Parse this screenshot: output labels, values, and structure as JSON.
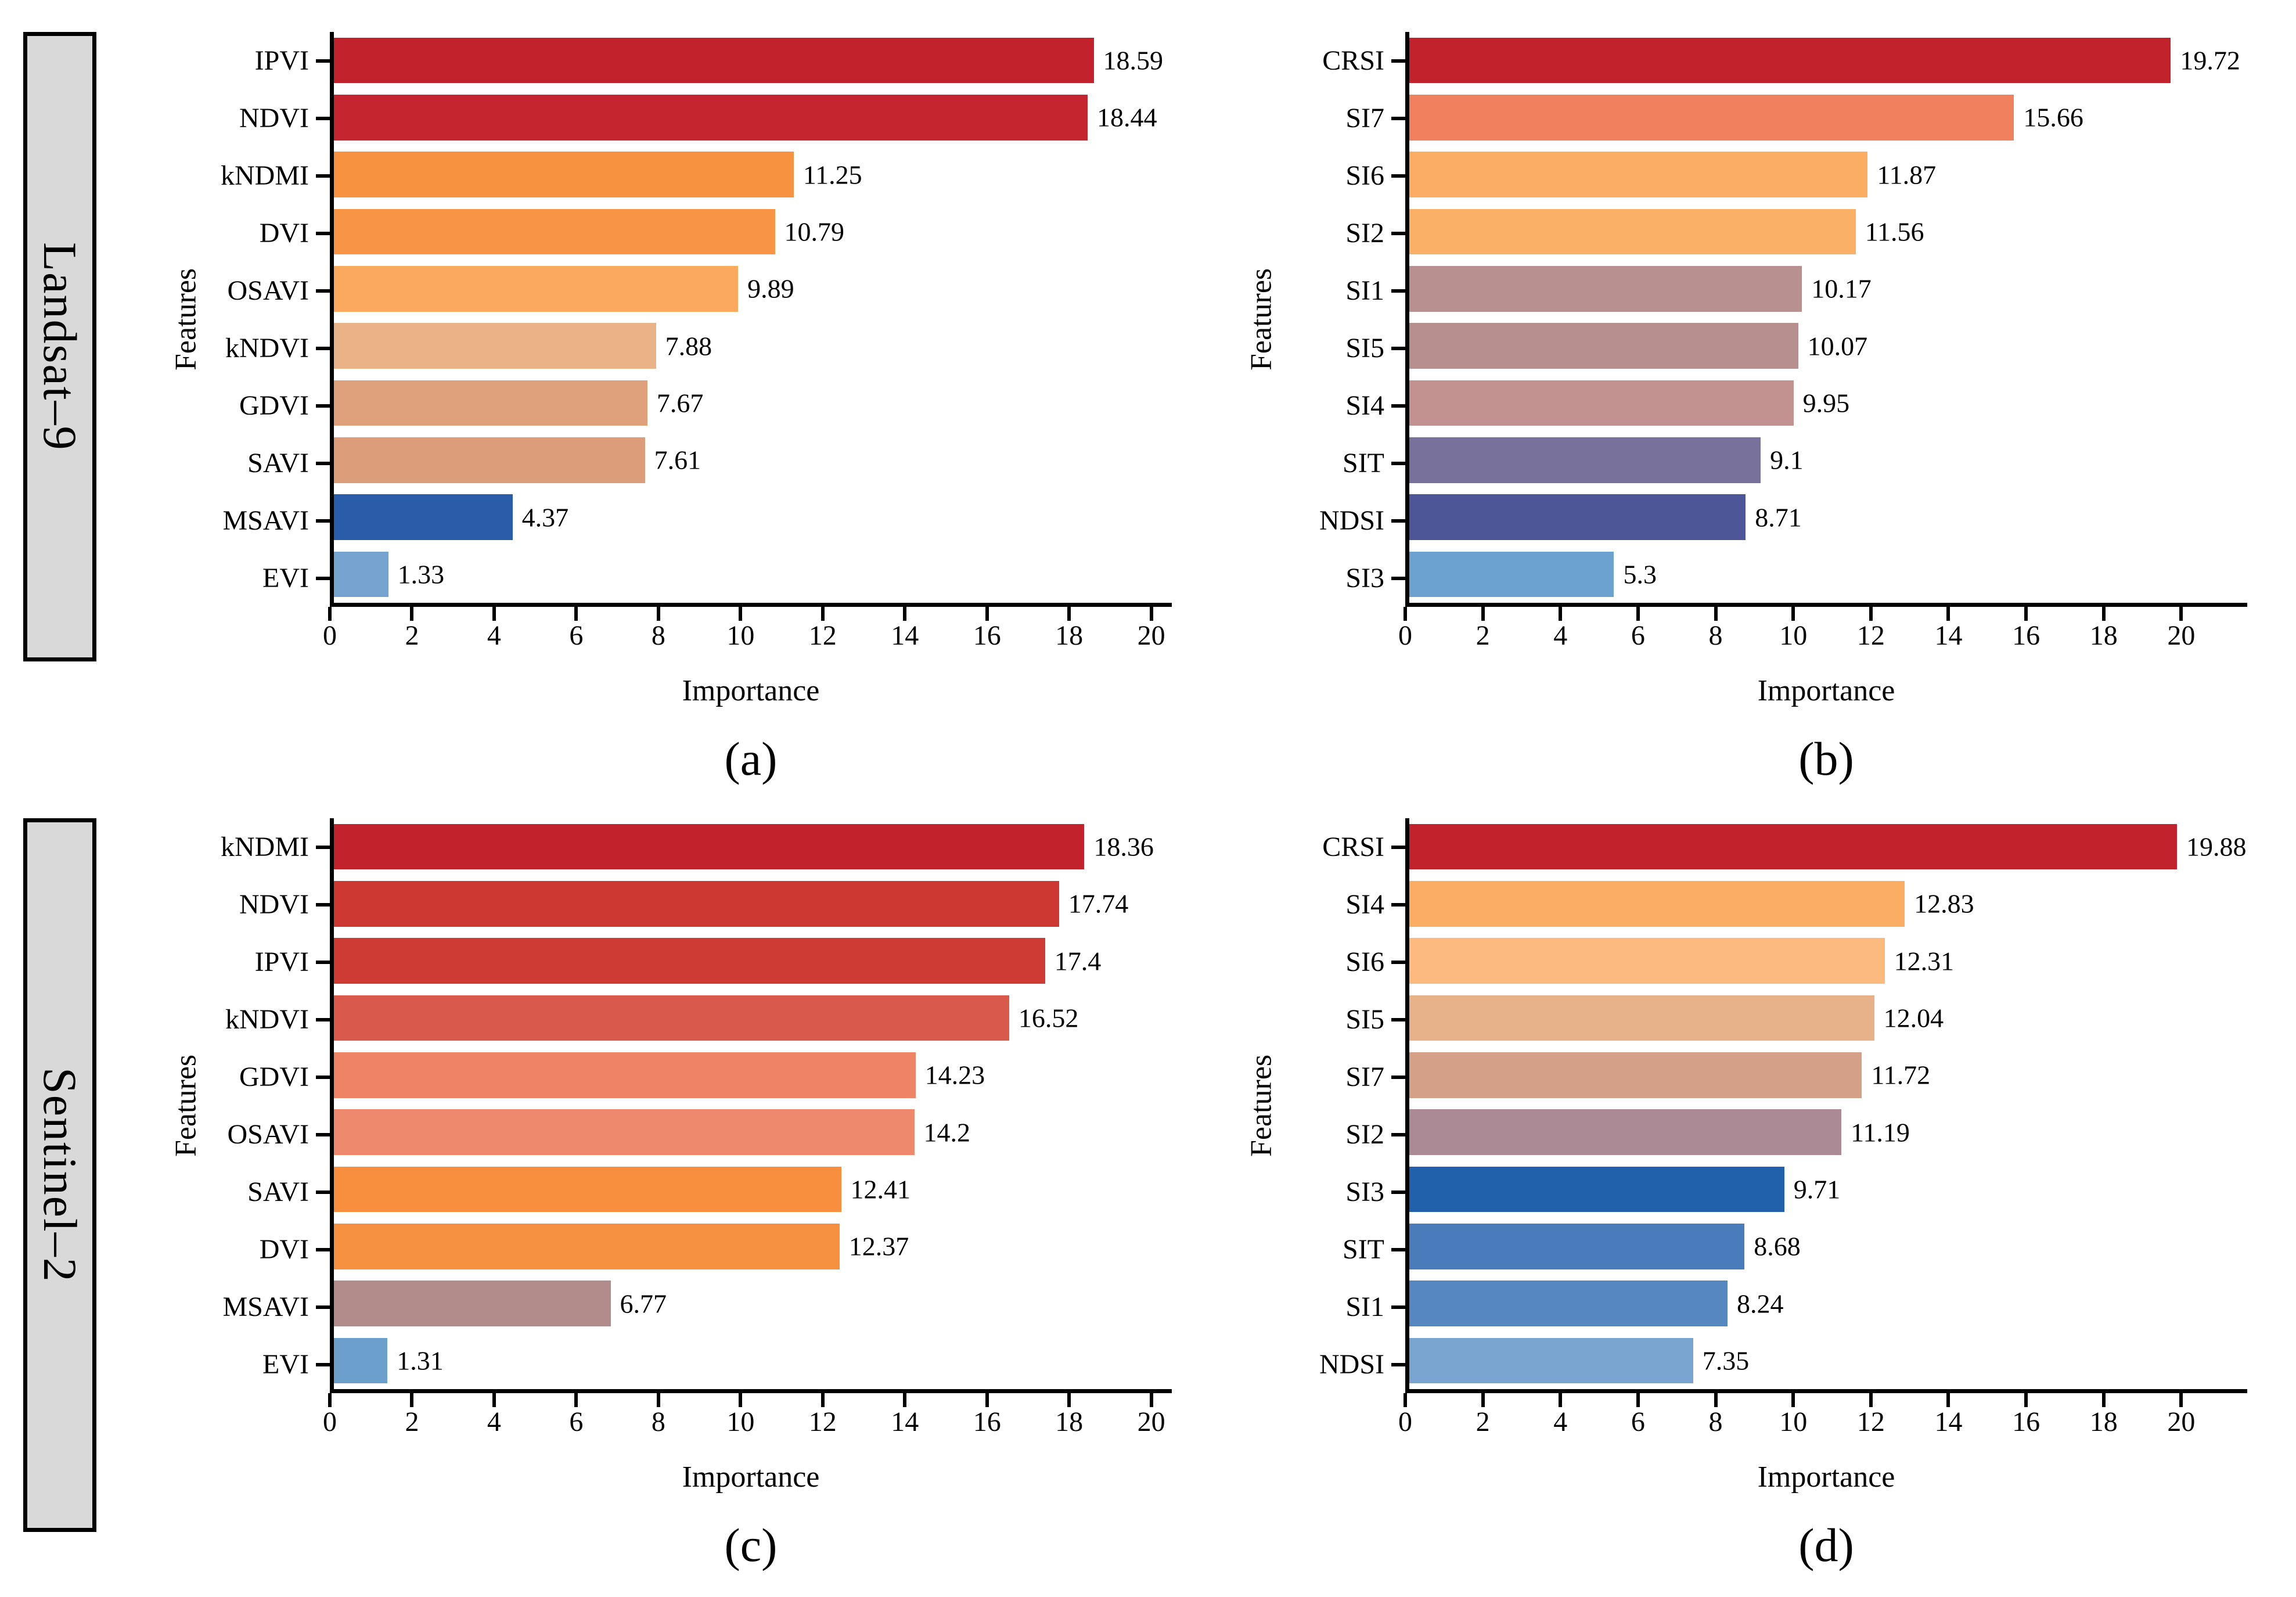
{
  "figure": {
    "rows": [
      {
        "group_label": "Landsat–9"
      },
      {
        "group_label": "Sentinel–2"
      }
    ],
    "styles": {
      "group_box_bg": "#d9d9d9",
      "axis_color": "#000000",
      "text_color": "#000000",
      "background": "#ffffff"
    }
  },
  "chart_data": [
    {
      "caption": "(a)",
      "group": "Landsat–9",
      "type": "bar",
      "orientation": "horizontal",
      "xlabel": "Importance",
      "ylabel": "Features",
      "xlim": [
        0,
        20.5
      ],
      "xticks": [
        0,
        2,
        4,
        6,
        8,
        10,
        12,
        14,
        16,
        18,
        20
      ],
      "grid": false,
      "legend": false,
      "bars": [
        {
          "label": "IPVI",
          "value": 18.59,
          "value_label": "18.59",
          "color": "#c2222c"
        },
        {
          "label": "NDVI",
          "value": 18.44,
          "value_label": "18.44",
          "color": "#c4252e"
        },
        {
          "label": "kNDMI",
          "value": 11.25,
          "value_label": "11.25",
          "color": "#f69240"
        },
        {
          "label": "DVI",
          "value": 10.79,
          "value_label": "10.79",
          "color": "#f79445"
        },
        {
          "label": "OSAVI",
          "value": 9.89,
          "value_label": "9.89",
          "color": "#faa95e"
        },
        {
          "label": "kNDVI",
          "value": 7.88,
          "value_label": "7.88",
          "color": "#e9b287"
        },
        {
          "label": "GDVI",
          "value": 7.67,
          "value_label": "7.67",
          "color": "#dfa07c"
        },
        {
          "label": "SAVI",
          "value": 7.61,
          "value_label": "7.61",
          "color": "#dc9e7a"
        },
        {
          "label": "MSAVI",
          "value": 4.37,
          "value_label": "4.37",
          "color": "#2a5da9"
        },
        {
          "label": "EVI",
          "value": 1.33,
          "value_label": "1.33",
          "color": "#77a3d1"
        }
      ]
    },
    {
      "caption": "(b)",
      "group": "Landsat–9",
      "type": "bar",
      "orientation": "horizontal",
      "xlabel": "Importance",
      "ylabel": "Features",
      "xlim": [
        0,
        21.7
      ],
      "xticks": [
        0,
        2,
        4,
        6,
        8,
        10,
        12,
        14,
        16,
        18,
        20
      ],
      "grid": false,
      "legend": false,
      "bars": [
        {
          "label": "CRSI",
          "value": 19.72,
          "value_label": "19.72",
          "color": "#c2222c"
        },
        {
          "label": "SI7",
          "value": 15.66,
          "value_label": "15.66",
          "color": "#f0815e"
        },
        {
          "label": "SI6",
          "value": 11.87,
          "value_label": "11.87",
          "color": "#fbad63"
        },
        {
          "label": "SI2",
          "value": 11.56,
          "value_label": "11.56",
          "color": "#fbb068"
        },
        {
          "label": "SI1",
          "value": 10.17,
          "value_label": "10.17",
          "color": "#b99090"
        },
        {
          "label": "SI5",
          "value": 10.07,
          "value_label": "10.07",
          "color": "#b78f8f"
        },
        {
          "label": "SI4",
          "value": 9.95,
          "value_label": "9.95",
          "color": "#c29290"
        },
        {
          "label": "SIT",
          "value": 9.1,
          "value_label": "9.1",
          "color": "#78719c"
        },
        {
          "label": "NDSI",
          "value": 8.71,
          "value_label": "8.71",
          "color": "#4d5798"
        },
        {
          "label": "SI3",
          "value": 5.3,
          "value_label": "5.3",
          "color": "#6ba2cf"
        }
      ]
    },
    {
      "caption": "(c)",
      "group": "Sentinel–2",
      "type": "bar",
      "orientation": "horizontal",
      "xlabel": "Importance",
      "ylabel": "Features",
      "xlim": [
        0,
        20.5
      ],
      "xticks": [
        0,
        2,
        4,
        6,
        8,
        10,
        12,
        14,
        16,
        18,
        20
      ],
      "grid": false,
      "legend": false,
      "bars": [
        {
          "label": "kNDMI",
          "value": 18.36,
          "value_label": "18.36",
          "color": "#c2222c"
        },
        {
          "label": "NDVI",
          "value": 17.74,
          "value_label": "17.74",
          "color": "#cd3833"
        },
        {
          "label": "IPVI",
          "value": 17.4,
          "value_label": "17.4",
          "color": "#ce3b35"
        },
        {
          "label": "kNDVI",
          "value": 16.52,
          "value_label": "16.52",
          "color": "#d95a4d"
        },
        {
          "label": "GDVI",
          "value": 14.23,
          "value_label": "14.23",
          "color": "#ee8366"
        },
        {
          "label": "OSAVI",
          "value": 14.2,
          "value_label": "14.2",
          "color": "#ef896d"
        },
        {
          "label": "SAVI",
          "value": 12.41,
          "value_label": "12.41",
          "color": "#f78f3f"
        },
        {
          "label": "DVI",
          "value": 12.37,
          "value_label": "12.37",
          "color": "#f79142"
        },
        {
          "label": "MSAVI",
          "value": 6.77,
          "value_label": "6.77",
          "color": "#b18c8a"
        },
        {
          "label": "EVI",
          "value": 1.31,
          "value_label": "1.31",
          "color": "#6c9fcc"
        }
      ]
    },
    {
      "caption": "(d)",
      "group": "Sentinel–2",
      "type": "bar",
      "orientation": "horizontal",
      "xlabel": "Importance",
      "ylabel": "Features",
      "xlim": [
        0,
        21.7
      ],
      "xticks": [
        0,
        2,
        4,
        6,
        8,
        10,
        12,
        14,
        16,
        18,
        20
      ],
      "grid": false,
      "legend": false,
      "bars": [
        {
          "label": "CRSI",
          "value": 19.88,
          "value_label": "19.88",
          "color": "#c2222c"
        },
        {
          "label": "SI4",
          "value": 12.83,
          "value_label": "12.83",
          "color": "#fbad63"
        },
        {
          "label": "SI6",
          "value": 12.31,
          "value_label": "12.31",
          "color": "#fcba7e"
        },
        {
          "label": "SI5",
          "value": 12.04,
          "value_label": "12.04",
          "color": "#e7b189"
        },
        {
          "label": "SI7",
          "value": 11.72,
          "value_label": "11.72",
          "color": "#d4a087"
        },
        {
          "label": "SI2",
          "value": 11.19,
          "value_label": "11.19",
          "color": "#ab8a96"
        },
        {
          "label": "SI3",
          "value": 9.71,
          "value_label": "9.71",
          "color": "#2160aa"
        },
        {
          "label": "SIT",
          "value": 8.68,
          "value_label": "8.68",
          "color": "#4a7cbc"
        },
        {
          "label": "SI1",
          "value": 8.24,
          "value_label": "8.24",
          "color": "#5787c1"
        },
        {
          "label": "NDSI",
          "value": 7.35,
          "value_label": "7.35",
          "color": "#7ba5d1"
        }
      ]
    }
  ]
}
